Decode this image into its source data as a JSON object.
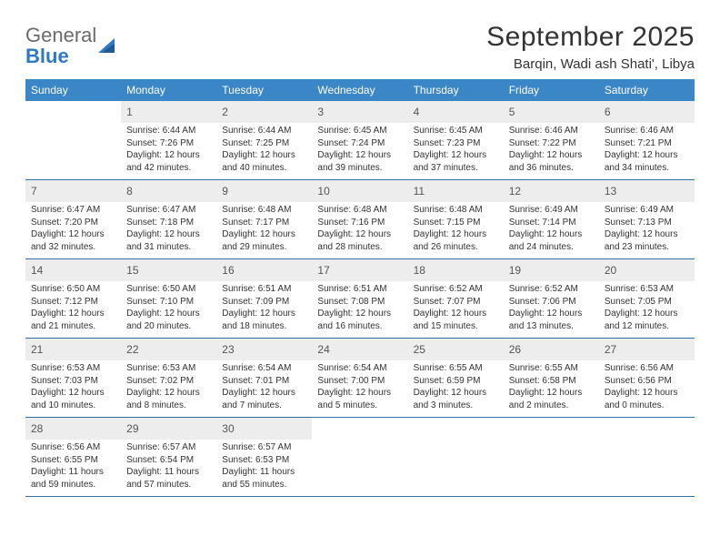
{
  "logo": {
    "word1": "General",
    "word2": "Blue",
    "glyph_color": "#2e79c1",
    "text_color": "#6a6a6a"
  },
  "header": {
    "month_title": "September 2025",
    "location": "Barqin, Wadi ash Shati', Libya"
  },
  "colors": {
    "header_bg": "#3b86c6",
    "header_text": "#ffffff",
    "daynum_bg": "#ededed",
    "week_border": "#2f6fa5",
    "body_text": "#333333"
  },
  "weekdays": [
    "Sunday",
    "Monday",
    "Tuesday",
    "Wednesday",
    "Thursday",
    "Friday",
    "Saturday"
  ],
  "weeks": [
    [
      {
        "empty": true
      },
      {
        "day": "1",
        "sunrise": "Sunrise: 6:44 AM",
        "sunset": "Sunset: 7:26 PM",
        "daylight": "Daylight: 12 hours and 42 minutes."
      },
      {
        "day": "2",
        "sunrise": "Sunrise: 6:44 AM",
        "sunset": "Sunset: 7:25 PM",
        "daylight": "Daylight: 12 hours and 40 minutes."
      },
      {
        "day": "3",
        "sunrise": "Sunrise: 6:45 AM",
        "sunset": "Sunset: 7:24 PM",
        "daylight": "Daylight: 12 hours and 39 minutes."
      },
      {
        "day": "4",
        "sunrise": "Sunrise: 6:45 AM",
        "sunset": "Sunset: 7:23 PM",
        "daylight": "Daylight: 12 hours and 37 minutes."
      },
      {
        "day": "5",
        "sunrise": "Sunrise: 6:46 AM",
        "sunset": "Sunset: 7:22 PM",
        "daylight": "Daylight: 12 hours and 36 minutes."
      },
      {
        "day": "6",
        "sunrise": "Sunrise: 6:46 AM",
        "sunset": "Sunset: 7:21 PM",
        "daylight": "Daylight: 12 hours and 34 minutes."
      }
    ],
    [
      {
        "day": "7",
        "sunrise": "Sunrise: 6:47 AM",
        "sunset": "Sunset: 7:20 PM",
        "daylight": "Daylight: 12 hours and 32 minutes."
      },
      {
        "day": "8",
        "sunrise": "Sunrise: 6:47 AM",
        "sunset": "Sunset: 7:18 PM",
        "daylight": "Daylight: 12 hours and 31 minutes."
      },
      {
        "day": "9",
        "sunrise": "Sunrise: 6:48 AM",
        "sunset": "Sunset: 7:17 PM",
        "daylight": "Daylight: 12 hours and 29 minutes."
      },
      {
        "day": "10",
        "sunrise": "Sunrise: 6:48 AM",
        "sunset": "Sunset: 7:16 PM",
        "daylight": "Daylight: 12 hours and 28 minutes."
      },
      {
        "day": "11",
        "sunrise": "Sunrise: 6:48 AM",
        "sunset": "Sunset: 7:15 PM",
        "daylight": "Daylight: 12 hours and 26 minutes."
      },
      {
        "day": "12",
        "sunrise": "Sunrise: 6:49 AM",
        "sunset": "Sunset: 7:14 PM",
        "daylight": "Daylight: 12 hours and 24 minutes."
      },
      {
        "day": "13",
        "sunrise": "Sunrise: 6:49 AM",
        "sunset": "Sunset: 7:13 PM",
        "daylight": "Daylight: 12 hours and 23 minutes."
      }
    ],
    [
      {
        "day": "14",
        "sunrise": "Sunrise: 6:50 AM",
        "sunset": "Sunset: 7:12 PM",
        "daylight": "Daylight: 12 hours and 21 minutes."
      },
      {
        "day": "15",
        "sunrise": "Sunrise: 6:50 AM",
        "sunset": "Sunset: 7:10 PM",
        "daylight": "Daylight: 12 hours and 20 minutes."
      },
      {
        "day": "16",
        "sunrise": "Sunrise: 6:51 AM",
        "sunset": "Sunset: 7:09 PM",
        "daylight": "Daylight: 12 hours and 18 minutes."
      },
      {
        "day": "17",
        "sunrise": "Sunrise: 6:51 AM",
        "sunset": "Sunset: 7:08 PM",
        "daylight": "Daylight: 12 hours and 16 minutes."
      },
      {
        "day": "18",
        "sunrise": "Sunrise: 6:52 AM",
        "sunset": "Sunset: 7:07 PM",
        "daylight": "Daylight: 12 hours and 15 minutes."
      },
      {
        "day": "19",
        "sunrise": "Sunrise: 6:52 AM",
        "sunset": "Sunset: 7:06 PM",
        "daylight": "Daylight: 12 hours and 13 minutes."
      },
      {
        "day": "20",
        "sunrise": "Sunrise: 6:53 AM",
        "sunset": "Sunset: 7:05 PM",
        "daylight": "Daylight: 12 hours and 12 minutes."
      }
    ],
    [
      {
        "day": "21",
        "sunrise": "Sunrise: 6:53 AM",
        "sunset": "Sunset: 7:03 PM",
        "daylight": "Daylight: 12 hours and 10 minutes."
      },
      {
        "day": "22",
        "sunrise": "Sunrise: 6:53 AM",
        "sunset": "Sunset: 7:02 PM",
        "daylight": "Daylight: 12 hours and 8 minutes."
      },
      {
        "day": "23",
        "sunrise": "Sunrise: 6:54 AM",
        "sunset": "Sunset: 7:01 PM",
        "daylight": "Daylight: 12 hours and 7 minutes."
      },
      {
        "day": "24",
        "sunrise": "Sunrise: 6:54 AM",
        "sunset": "Sunset: 7:00 PM",
        "daylight": "Daylight: 12 hours and 5 minutes."
      },
      {
        "day": "25",
        "sunrise": "Sunrise: 6:55 AM",
        "sunset": "Sunset: 6:59 PM",
        "daylight": "Daylight: 12 hours and 3 minutes."
      },
      {
        "day": "26",
        "sunrise": "Sunrise: 6:55 AM",
        "sunset": "Sunset: 6:58 PM",
        "daylight": "Daylight: 12 hours and 2 minutes."
      },
      {
        "day": "27",
        "sunrise": "Sunrise: 6:56 AM",
        "sunset": "Sunset: 6:56 PM",
        "daylight": "Daylight: 12 hours and 0 minutes."
      }
    ],
    [
      {
        "day": "28",
        "sunrise": "Sunrise: 6:56 AM",
        "sunset": "Sunset: 6:55 PM",
        "daylight": "Daylight: 11 hours and 59 minutes."
      },
      {
        "day": "29",
        "sunrise": "Sunrise: 6:57 AM",
        "sunset": "Sunset: 6:54 PM",
        "daylight": "Daylight: 11 hours and 57 minutes."
      },
      {
        "day": "30",
        "sunrise": "Sunrise: 6:57 AM",
        "sunset": "Sunset: 6:53 PM",
        "daylight": "Daylight: 11 hours and 55 minutes."
      },
      {
        "empty": true
      },
      {
        "empty": true
      },
      {
        "empty": true
      },
      {
        "empty": true
      }
    ]
  ]
}
